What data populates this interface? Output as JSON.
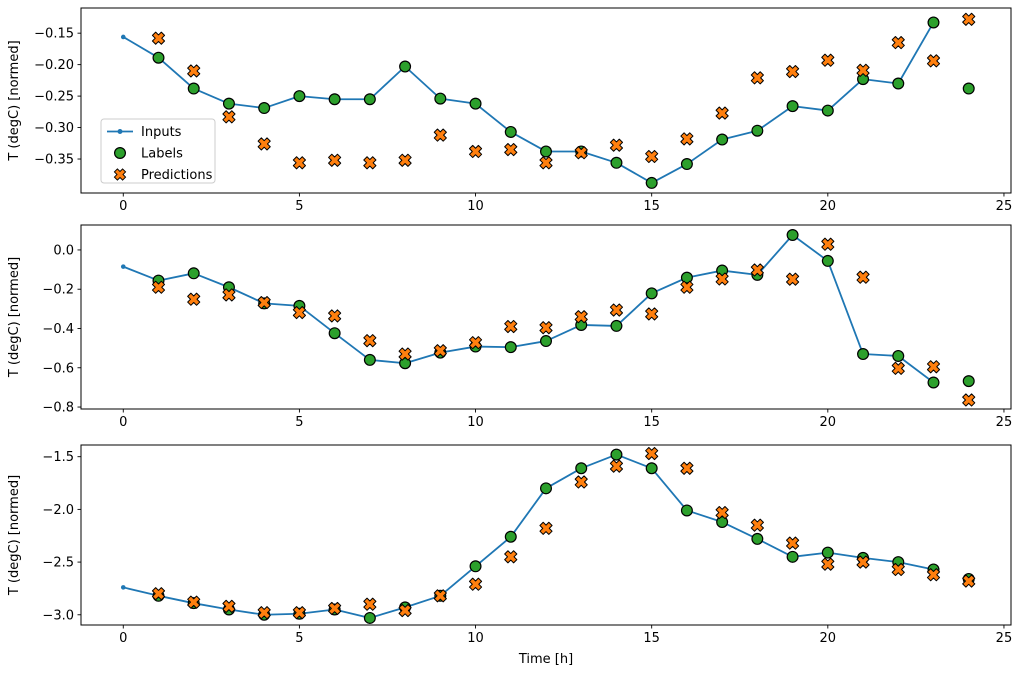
{
  "figure": {
    "background": "#ffffff",
    "text_color": "#000000",
    "spine_color": "#000000",
    "xlabel": "Time [h]",
    "ylabel": "T (degC) [normed]",
    "legend": {
      "position": "upper-left-of-first-subplot",
      "items": [
        {
          "label": "Inputs",
          "marker": "line-dot",
          "color": "#1f77b4"
        },
        {
          "label": "Labels",
          "marker": "circle",
          "color": "#2ca02c"
        },
        {
          "label": "Predictions",
          "marker": "x",
          "color": "#ff7f0e"
        }
      ]
    }
  },
  "chart_data": [
    {
      "type": "line",
      "subtype": "line-plus-scatter",
      "title": "",
      "xlabel": "",
      "ylabel": "T (degC) [normed]",
      "xlim": [
        -1.2,
        25.2
      ],
      "ylim": [
        -0.404,
        -0.11
      ],
      "xticks": [
        0,
        5,
        10,
        15,
        20,
        25
      ],
      "xtick_labels": [
        "0",
        "5",
        "10",
        "15",
        "20",
        "25"
      ],
      "yticks": [
        -0.15,
        -0.2,
        -0.25,
        -0.3,
        -0.35
      ],
      "ytick_labels": [
        "−0.15",
        "−0.20",
        "−0.25",
        "−0.30",
        "−0.35"
      ],
      "grid": false,
      "legend_visible": true,
      "series": [
        {
          "name": "Inputs",
          "type": "line",
          "color": "#1f77b4",
          "x": [
            0,
            1,
            2,
            3,
            4,
            5,
            6,
            7,
            8,
            9,
            10,
            11,
            12,
            13,
            14,
            15,
            16,
            17,
            18,
            19,
            20,
            21,
            22,
            23
          ],
          "values": [
            -0.156,
            -0.189,
            -0.238,
            -0.262,
            -0.269,
            -0.25,
            -0.255,
            -0.255,
            -0.203,
            -0.254,
            -0.262,
            -0.307,
            -0.338,
            -0.338,
            -0.356,
            -0.388,
            -0.358,
            -0.319,
            -0.305,
            -0.266,
            -0.273,
            -0.223,
            -0.23,
            -0.133
          ]
        },
        {
          "name": "Labels",
          "type": "scatter-circle",
          "color": "#2ca02c",
          "x": [
            1,
            2,
            3,
            4,
            5,
            6,
            7,
            8,
            9,
            10,
            11,
            12,
            13,
            14,
            15,
            16,
            17,
            18,
            19,
            20,
            21,
            22,
            23,
            24
          ],
          "values": [
            -0.189,
            -0.238,
            -0.262,
            -0.269,
            -0.25,
            -0.255,
            -0.255,
            -0.203,
            -0.254,
            -0.262,
            -0.307,
            -0.338,
            -0.338,
            -0.356,
            -0.388,
            -0.358,
            -0.319,
            -0.305,
            -0.266,
            -0.273,
            -0.223,
            -0.23,
            -0.133,
            -0.238
          ]
        },
        {
          "name": "Predictions",
          "type": "scatter-x",
          "color": "#ff7f0e",
          "x": [
            1,
            2,
            3,
            4,
            5,
            6,
            7,
            8,
            9,
            10,
            11,
            12,
            13,
            14,
            15,
            16,
            17,
            18,
            19,
            20,
            21,
            22,
            23,
            24
          ],
          "values": [
            -0.158,
            -0.21,
            -0.283,
            -0.326,
            -0.356,
            -0.352,
            -0.356,
            -0.352,
            -0.312,
            -0.338,
            -0.335,
            -0.356,
            -0.34,
            -0.328,
            -0.346,
            -0.318,
            -0.277,
            -0.221,
            -0.211,
            -0.193,
            -0.209,
            -0.165,
            -0.194,
            -0.128
          ]
        }
      ]
    },
    {
      "type": "line",
      "subtype": "line-plus-scatter",
      "title": "",
      "xlabel": "",
      "ylabel": "T (degC) [normed]",
      "xlim": [
        -1.2,
        25.2
      ],
      "ylim": [
        -0.81,
        0.127
      ],
      "xticks": [
        0,
        5,
        10,
        15,
        20,
        25
      ],
      "xtick_labels": [
        "0",
        "5",
        "10",
        "15",
        "20",
        "25"
      ],
      "yticks": [
        0.0,
        -0.2,
        -0.4,
        -0.6,
        -0.8
      ],
      "ytick_labels": [
        "0.0",
        "−0.2",
        "−0.4",
        "−0.6",
        "−0.8"
      ],
      "grid": false,
      "legend_visible": false,
      "series": [
        {
          "name": "Inputs",
          "type": "line",
          "color": "#1f77b4",
          "x": [
            0,
            1,
            2,
            3,
            4,
            5,
            6,
            7,
            8,
            9,
            10,
            11,
            12,
            13,
            14,
            15,
            16,
            17,
            18,
            19,
            20,
            21,
            22,
            23
          ],
          "values": [
            -0.085,
            -0.156,
            -0.119,
            -0.19,
            -0.272,
            -0.285,
            -0.424,
            -0.56,
            -0.577,
            -0.523,
            -0.492,
            -0.495,
            -0.464,
            -0.382,
            -0.387,
            -0.221,
            -0.141,
            -0.105,
            -0.127,
            0.076,
            -0.056,
            -0.53,
            -0.54,
            -0.675
          ]
        },
        {
          "name": "Labels",
          "type": "scatter-circle",
          "color": "#2ca02c",
          "x": [
            1,
            2,
            3,
            4,
            5,
            6,
            7,
            8,
            9,
            10,
            11,
            12,
            13,
            14,
            15,
            16,
            17,
            18,
            19,
            20,
            21,
            22,
            23,
            24
          ],
          "values": [
            -0.156,
            -0.119,
            -0.19,
            -0.272,
            -0.285,
            -0.424,
            -0.56,
            -0.577,
            -0.523,
            -0.492,
            -0.495,
            -0.464,
            -0.382,
            -0.387,
            -0.221,
            -0.141,
            -0.105,
            -0.127,
            0.076,
            -0.056,
            -0.53,
            -0.54,
            -0.675,
            -0.668
          ]
        },
        {
          "name": "Predictions",
          "type": "scatter-x",
          "color": "#ff7f0e",
          "x": [
            1,
            2,
            3,
            4,
            5,
            6,
            7,
            8,
            9,
            10,
            11,
            12,
            13,
            14,
            15,
            16,
            17,
            18,
            19,
            20,
            21,
            22,
            23,
            24
          ],
          "values": [
            -0.19,
            -0.251,
            -0.229,
            -0.268,
            -0.319,
            -0.336,
            -0.462,
            -0.53,
            -0.513,
            -0.472,
            -0.39,
            -0.396,
            -0.34,
            -0.306,
            -0.326,
            -0.19,
            -0.148,
            -0.102,
            -0.149,
            0.029,
            -0.139,
            -0.603,
            -0.595,
            -0.764
          ]
        }
      ]
    },
    {
      "type": "line",
      "subtype": "line-plus-scatter",
      "title": "",
      "xlabel": "Time [h]",
      "ylabel": "T (degC) [normed]",
      "xlim": [
        -1.2,
        25.2
      ],
      "ylim": [
        -3.097,
        -1.389
      ],
      "xticks": [
        0,
        5,
        10,
        15,
        20,
        25
      ],
      "xtick_labels": [
        "0",
        "5",
        "10",
        "15",
        "20",
        "25"
      ],
      "yticks": [
        -1.5,
        -2.0,
        -2.5,
        -3.0
      ],
      "ytick_labels": [
        "−1.5",
        "−2.0",
        "−2.5",
        "−3.0"
      ],
      "grid": false,
      "legend_visible": false,
      "series": [
        {
          "name": "Inputs",
          "type": "line",
          "color": "#1f77b4",
          "x": [
            0,
            1,
            2,
            3,
            4,
            5,
            6,
            7,
            8,
            9,
            10,
            11,
            12,
            13,
            14,
            15,
            16,
            17,
            18,
            19,
            20,
            21,
            22,
            23
          ],
          "values": [
            -2.74,
            -2.82,
            -2.89,
            -2.95,
            -3.0,
            -2.99,
            -2.95,
            -3.03,
            -2.93,
            -2.82,
            -2.54,
            -2.26,
            -1.8,
            -1.61,
            -1.48,
            -1.61,
            -2.01,
            -2.12,
            -2.28,
            -2.45,
            -2.41,
            -2.46,
            -2.5,
            -2.57
          ]
        },
        {
          "name": "Labels",
          "type": "scatter-circle",
          "color": "#2ca02c",
          "x": [
            1,
            2,
            3,
            4,
            5,
            6,
            7,
            8,
            9,
            10,
            11,
            12,
            13,
            14,
            15,
            16,
            17,
            18,
            19,
            20,
            21,
            22,
            23,
            24
          ],
          "values": [
            -2.82,
            -2.89,
            -2.95,
            -3.0,
            -2.99,
            -2.95,
            -3.03,
            -2.93,
            -2.82,
            -2.54,
            -2.26,
            -1.8,
            -1.61,
            -1.48,
            -1.61,
            -2.01,
            -2.12,
            -2.28,
            -2.45,
            -2.41,
            -2.46,
            -2.5,
            -2.57,
            -2.66
          ]
        },
        {
          "name": "Predictions",
          "type": "scatter-x",
          "color": "#ff7f0e",
          "x": [
            1,
            2,
            3,
            4,
            5,
            6,
            7,
            8,
            9,
            10,
            11,
            12,
            13,
            14,
            15,
            16,
            17,
            18,
            19,
            20,
            21,
            22,
            23,
            24
          ],
          "values": [
            -2.8,
            -2.88,
            -2.92,
            -2.98,
            -2.98,
            -2.94,
            -2.9,
            -2.96,
            -2.82,
            -2.71,
            -2.45,
            -2.18,
            -1.74,
            -1.59,
            -1.47,
            -1.61,
            -2.03,
            -2.15,
            -2.32,
            -2.52,
            -2.5,
            -2.57,
            -2.62,
            -2.68
          ]
        }
      ]
    }
  ]
}
